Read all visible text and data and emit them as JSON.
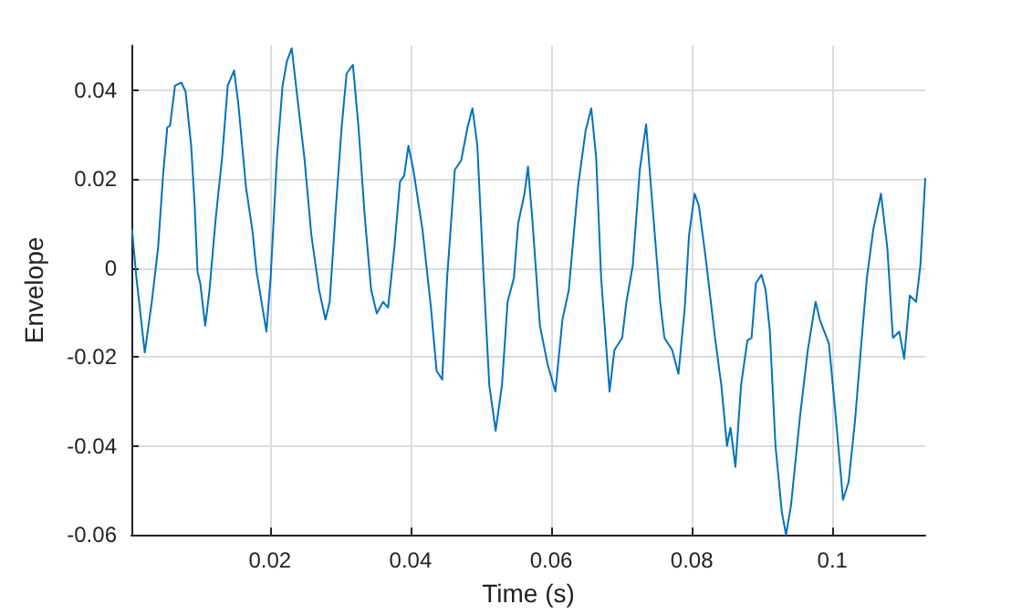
{
  "chart_data": {
    "type": "line",
    "xlabel": "Time (s)",
    "ylabel": "Envelope",
    "grid": true,
    "marker": "none",
    "line_style": "solid",
    "xlim": [
      0.0003,
      0.1132
    ],
    "xticks": [
      0.02,
      0.04,
      0.06,
      0.08,
      0.1
    ],
    "ylim": [
      -0.06,
      0.05
    ],
    "yticks": [
      -0.06,
      -0.04,
      -0.02,
      0,
      0.02,
      0.04
    ],
    "series": [
      {
        "color": "#0072bd",
        "x": [
          0.0004,
          0.001,
          0.0022,
          0.0032,
          0.0041,
          0.0048,
          0.0054,
          0.0058,
          0.0065,
          0.0074,
          0.008,
          0.0088,
          0.0093,
          0.0097,
          0.0101,
          0.0108,
          0.0114,
          0.0123,
          0.0132,
          0.014,
          0.0149,
          0.0155,
          0.0166,
          0.0175,
          0.0181,
          0.0195,
          0.0201,
          0.021,
          0.0218,
          0.0224,
          0.0231,
          0.024,
          0.0249,
          0.0259,
          0.027,
          0.0279,
          0.0285,
          0.0294,
          0.0302,
          0.0309,
          0.0318,
          0.0326,
          0.0335,
          0.0344,
          0.0352,
          0.0361,
          0.0368,
          0.0377,
          0.0385,
          0.0391,
          0.0397,
          0.0404,
          0.0417,
          0.0429,
          0.0437,
          0.0445,
          0.0452,
          0.0463,
          0.0472,
          0.0481,
          0.0488,
          0.0495,
          0.0504,
          0.0512,
          0.0521,
          0.053,
          0.0538,
          0.0547,
          0.0553,
          0.0562,
          0.0567,
          0.0573,
          0.0584,
          0.0595,
          0.0606,
          0.0616,
          0.0625,
          0.0638,
          0.0649,
          0.0657,
          0.0664,
          0.0671,
          0.0683,
          0.069,
          0.0701,
          0.0707,
          0.0716,
          0.0726,
          0.0735,
          0.0742,
          0.0755,
          0.0761,
          0.0772,
          0.0781,
          0.079,
          0.0796,
          0.0804,
          0.081,
          0.082,
          0.0833,
          0.0842,
          0.085,
          0.0855,
          0.0862,
          0.087,
          0.0879,
          0.0885,
          0.0891,
          0.0899,
          0.0905,
          0.0911,
          0.0919,
          0.0928,
          0.0934,
          0.0941,
          0.0954,
          0.0965,
          0.0976,
          0.0982,
          0.0995,
          0.1003,
          0.1015,
          0.1023,
          0.1032,
          0.1041,
          0.1049,
          0.1058,
          0.1069,
          0.1078,
          0.1086,
          0.1095,
          0.1102,
          0.111,
          0.1119,
          0.1125,
          0.1132
        ],
        "values": [
          0.0086,
          -0.002,
          -0.019,
          -0.0076,
          0.0046,
          0.0208,
          0.0316,
          0.032,
          0.041,
          0.0417,
          0.0397,
          0.0275,
          0.014,
          -0.0008,
          -0.0035,
          -0.013,
          -0.005,
          0.0113,
          0.0248,
          0.041,
          0.0444,
          0.037,
          0.0181,
          0.0086,
          -0.0008,
          -0.0143,
          -0.0022,
          0.0248,
          0.041,
          0.0464,
          0.0494,
          0.037,
          0.0248,
          0.0073,
          -0.005,
          -0.0116,
          -0.0076,
          0.014,
          0.0316,
          0.0437,
          0.0457,
          0.0316,
          0.0113,
          -0.005,
          -0.0102,
          -0.0076,
          -0.0089,
          0.0046,
          0.0194,
          0.0208,
          0.0275,
          0.0221,
          0.0086,
          -0.0089,
          -0.0231,
          -0.0251,
          -0.0022,
          0.0221,
          0.0242,
          0.0316,
          0.0359,
          0.0275,
          -0.0022,
          -0.0264,
          -0.0366,
          -0.0264,
          -0.0076,
          -0.0022,
          0.01,
          0.0167,
          0.0228,
          0.0113,
          -0.013,
          -0.0217,
          -0.0278,
          -0.0116,
          -0.005,
          0.0181,
          0.0309,
          0.0359,
          0.0248,
          -0.0022,
          -0.0278,
          -0.0184,
          -0.0157,
          -0.0076,
          0.0005,
          0.0221,
          0.0323,
          0.0181,
          -0.0076,
          -0.0157,
          -0.0184,
          -0.0238,
          -0.0089,
          0.0073,
          0.0167,
          0.014,
          0.0019,
          -0.0157,
          -0.0264,
          -0.04,
          -0.0359,
          -0.0447,
          -0.0264,
          -0.0163,
          -0.0157,
          -0.0035,
          -0.0015,
          -0.005,
          -0.0143,
          -0.04,
          -0.0548,
          -0.06,
          -0.0534,
          -0.0332,
          -0.0184,
          -0.0076,
          -0.0116,
          -0.017,
          -0.0305,
          -0.0521,
          -0.0481,
          -0.0345,
          -0.017,
          -0.0022,
          0.0086,
          0.0167,
          0.0046,
          -0.0157,
          -0.0143,
          -0.0204,
          -0.0062,
          -0.0076,
          0.0005,
          0.0201
        ]
      }
    ]
  }
}
